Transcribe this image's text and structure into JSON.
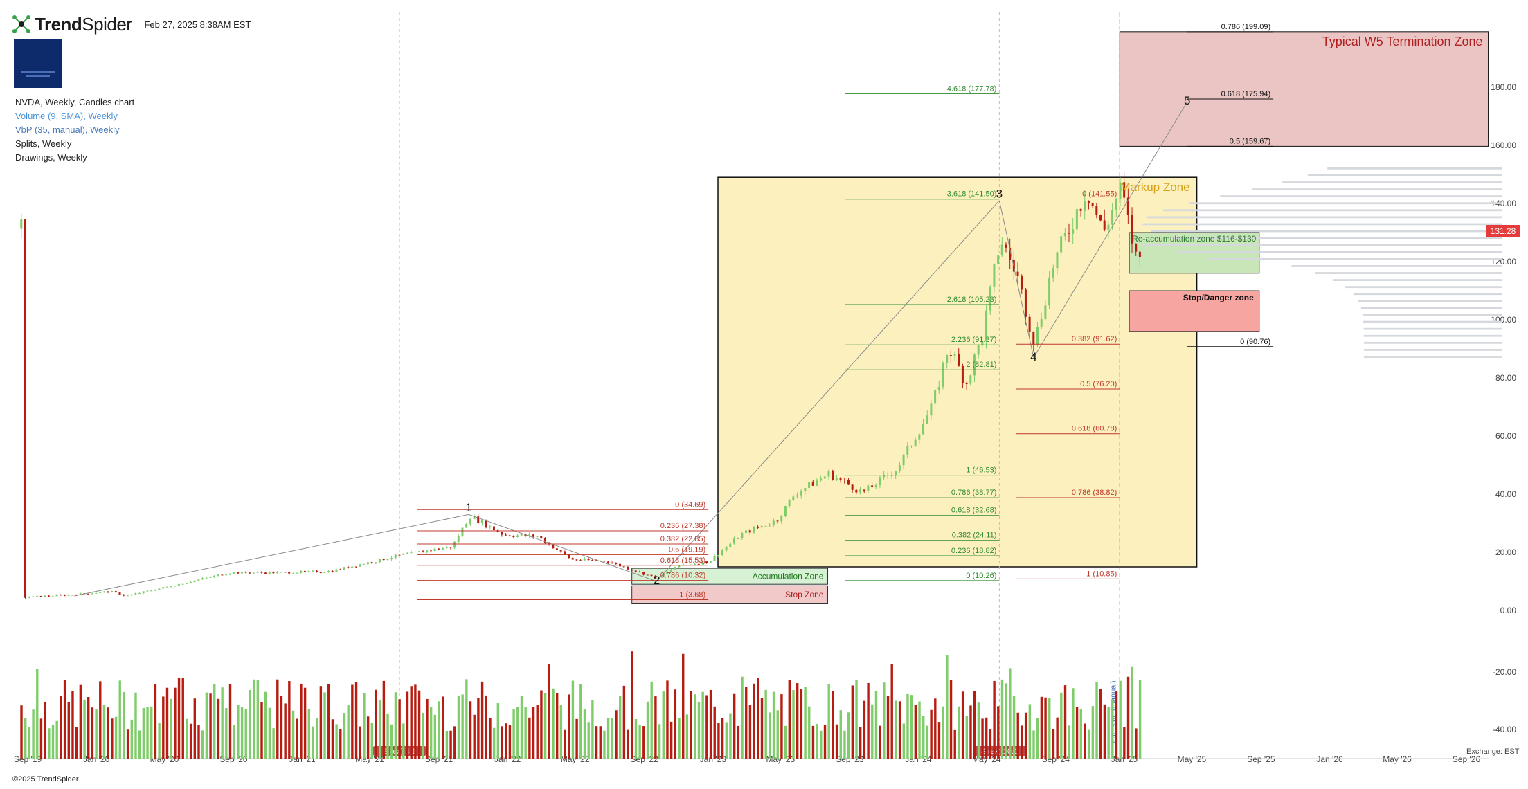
{
  "header": {
    "brand_bold": "Trend",
    "brand_light": "Spider",
    "timestamp": "Feb 27, 2025 8:38AM EST"
  },
  "legend": {
    "title": "NVDA, Weekly, Candles chart",
    "items": [
      {
        "label": "Volume (9, SMA), Weekly",
        "color": "#4a90d9"
      },
      {
        "label": "VbP (35, manual), Weekly",
        "color": "#4a7ab8"
      },
      {
        "label": "Splits, Weekly",
        "color": "#333333"
      },
      {
        "label": "Drawings, Weekly",
        "color": "#333333"
      }
    ]
  },
  "footer": {
    "copyright": "©2025 TrendSpider",
    "exchange": "Exchange: EST"
  },
  "current_price": "131.28",
  "colors": {
    "up": "#7fcd6a",
    "down": "#b71c10",
    "fib_green": "#2e8b2e",
    "fib_red": "#c0392b",
    "markup_zone": "#fdf0bf",
    "w5_zone": "#ebc4c4",
    "accent_price": "#e53b3b"
  },
  "chart_data": {
    "type": "candlestick",
    "ticker": "NVDA",
    "timeframe": "Weekly",
    "x_tick_labels": [
      "Sep '19",
      "Jan '20",
      "May '20",
      "Sep '20",
      "Jan '21",
      "May '21",
      "Sep '21",
      "Jan '22",
      "May '22",
      "Sep '22",
      "Jan '23",
      "May '23",
      "Sep '23",
      "Jan '24",
      "May '24",
      "Sep '24",
      "Jan '25",
      "May '25",
      "Sep '25",
      "Jan '26",
      "May '26",
      "Sep '26"
    ],
    "y_ticks": [
      0,
      20,
      40,
      60,
      80,
      100,
      120,
      140,
      160,
      180
    ],
    "y_tick_labels": [
      "0.00",
      "20.00",
      "40.00",
      "60.00",
      "80.00",
      "100.00",
      "120.00",
      "140.00",
      "160.00",
      "180.00"
    ],
    "volume_ticks": [
      "-20.00",
      "-40.00"
    ],
    "price_points": [
      [
        "2019-09",
        4.5
      ],
      [
        "2019-12",
        5.5
      ],
      [
        "2020-02",
        6.5
      ],
      [
        "2020-03",
        5.0
      ],
      [
        "2020-06",
        9.0
      ],
      [
        "2020-09",
        13.0
      ],
      [
        "2020-12",
        13.0
      ],
      [
        "2021-03",
        13.5
      ],
      [
        "2021-04",
        15.0
      ],
      [
        "2021-07",
        19.0
      ],
      [
        "2021-10",
        22.0
      ],
      [
        "2021-11",
        32.5
      ],
      [
        "2022-01",
        26.0
      ],
      [
        "2022-03",
        25.5
      ],
      [
        "2022-05",
        17.5
      ],
      [
        "2022-07",
        17.0
      ],
      [
        "2022-10",
        11.0
      ],
      [
        "2022-11",
        15.0
      ],
      [
        "2023-01",
        17.0
      ],
      [
        "2023-03",
        26.5
      ],
      [
        "2023-05",
        31.0
      ],
      [
        "2023-06",
        40.0
      ],
      [
        "2023-08",
        47.0
      ],
      [
        "2023-10",
        40.5
      ],
      [
        "2023-12",
        49.0
      ],
      [
        "2024-02",
        70.0
      ],
      [
        "2024-03",
        91.0
      ],
      [
        "2024-04",
        78.0
      ],
      [
        "2024-05",
        95.0
      ],
      [
        "2024-06",
        128.0
      ],
      [
        "2024-07",
        115.0
      ],
      [
        "2024-08",
        92.0
      ],
      [
        "2024-09",
        118.0
      ],
      [
        "2024-11",
        145.0
      ],
      [
        "2024-12",
        130.0
      ],
      [
        "2025-01",
        145.0
      ],
      [
        "2025-02",
        118.0
      ],
      [
        "2025-02-27",
        131.28
      ]
    ],
    "wave_labels": [
      {
        "label": "1",
        "date": "2021-11",
        "price": 34
      },
      {
        "label": "2",
        "date": "2022-10",
        "price": 9
      },
      {
        "label": "3",
        "date": "2024-06",
        "price": 142
      },
      {
        "label": "4",
        "date": "2024-08",
        "price": 86
      },
      {
        "label": "5",
        "date": "2025-05",
        "price": 174
      }
    ],
    "wave_lines": [
      {
        "from": [
          "2019-12",
          5
        ],
        "to": [
          "2021-11",
          33
        ]
      },
      {
        "from": [
          "2021-11",
          33
        ],
        "to": [
          "2022-10",
          10
        ]
      },
      {
        "from": [
          "2022-10",
          10
        ],
        "to": [
          "2024-06",
          141
        ]
      },
      {
        "from": [
          "2024-06",
          141
        ],
        "to": [
          "2024-08",
          87
        ]
      },
      {
        "from": [
          "2024-08",
          87
        ],
        "to": [
          "2025-05",
          175
        ]
      }
    ],
    "zones": [
      {
        "label": "Typical W5 Termination Zone",
        "x_start": "2025-01-15",
        "x_end": "2026-11-01",
        "y_low": 159.67,
        "y_high": 199.09,
        "fill": "#ebc4c4",
        "text_color": "#b02020"
      },
      {
        "label": "Markup Zone",
        "x_start": "2023-02-01",
        "x_end": "2025-06-01",
        "y_low": 15,
        "y_high": 149,
        "fill": "#fdf0bf",
        "text_color": "#d4a017"
      },
      {
        "label": "Accumulation Zone",
        "x_start": "2022-09-01",
        "x_end": "2023-08-15",
        "y_low": 9,
        "y_high": 14.5,
        "fill": "#d6f1d4",
        "text_color": "#1e7a1e"
      },
      {
        "label": "Stop Zone",
        "x_start": "2022-09-01",
        "x_end": "2023-08-15",
        "y_low": 2.5,
        "y_high": 8.5,
        "fill": "#f1c9c9",
        "text_color": "#b02020"
      },
      {
        "label": "Re-accumulation zone $116-$130",
        "x_start": "2025-02-01",
        "x_end": "2025-09-20",
        "y_low": 116,
        "y_high": 130,
        "fill": "#c8e6b8",
        "text_color": "#2e7a2e"
      },
      {
        "label": "Stop/Danger zone",
        "x_start": "2025-02-01",
        "x_end": "2025-09-20",
        "y_low": 96,
        "y_high": 110,
        "fill": "#f7a5a0",
        "text_color": "#111111"
      }
    ],
    "fib_levels": [
      {
        "label": "0 (34.69)",
        "price": 34.69,
        "x_start": "2021-08",
        "x_end": "2023-01",
        "color": "#c0392b"
      },
      {
        "label": "0.236 (27.38)",
        "price": 27.38,
        "x_start": "2021-08",
        "x_end": "2023-01",
        "color": "#c0392b"
      },
      {
        "label": "0.382 (22.85)",
        "price": 22.85,
        "x_start": "2021-08",
        "x_end": "2023-01",
        "color": "#c0392b"
      },
      {
        "label": "0.5 (19.19)",
        "price": 19.19,
        "x_start": "2021-08",
        "x_end": "2023-01",
        "color": "#c0392b"
      },
      {
        "label": "0.618 (15.53)",
        "price": 15.53,
        "x_start": "2021-08",
        "x_end": "2023-01",
        "color": "#c0392b"
      },
      {
        "label": "0.786 (10.32)",
        "price": 10.32,
        "x_start": "2021-08",
        "x_end": "2023-01",
        "color": "#c0392b"
      },
      {
        "label": "1 (3.68)",
        "price": 3.68,
        "x_start": "2021-08",
        "x_end": "2023-01",
        "color": "#c0392b"
      },
      {
        "label": "4.618 (177.78)",
        "price": 177.78,
        "x_start": "2023-09",
        "x_end": "2024-06",
        "color": "#2e8b2e"
      },
      {
        "label": "3.618 (141.50)",
        "price": 141.5,
        "x_start": "2023-09",
        "x_end": "2024-06",
        "color": "#2e8b2e"
      },
      {
        "label": "2.618 (105.23)",
        "price": 105.23,
        "x_start": "2023-09",
        "x_end": "2024-06",
        "color": "#2e8b2e"
      },
      {
        "label": "2.236 (91.37)",
        "price": 91.37,
        "x_start": "2023-09",
        "x_end": "2024-06",
        "color": "#2e8b2e"
      },
      {
        "label": "2 (82.81)",
        "price": 82.81,
        "x_start": "2023-09",
        "x_end": "2024-06",
        "color": "#2e8b2e"
      },
      {
        "label": "1 (46.53)",
        "price": 46.53,
        "x_start": "2023-09",
        "x_end": "2024-06",
        "color": "#2e8b2e"
      },
      {
        "label": "0.786 (38.77)",
        "price": 38.77,
        "x_start": "2023-09",
        "x_end": "2024-06",
        "color": "#2e8b2e"
      },
      {
        "label": "0.618 (32.68)",
        "price": 32.68,
        "x_start": "2023-09",
        "x_end": "2024-06",
        "color": "#2e8b2e"
      },
      {
        "label": "0.382 (24.11)",
        "price": 24.11,
        "x_start": "2023-09",
        "x_end": "2024-06",
        "color": "#2e8b2e"
      },
      {
        "label": "0.236 (18.82)",
        "price": 18.82,
        "x_start": "2023-09",
        "x_end": "2024-06",
        "color": "#2e8b2e"
      },
      {
        "label": "0 (10.26)",
        "price": 10.26,
        "x_start": "2023-09",
        "x_end": "2024-06",
        "color": "#2e8b2e"
      },
      {
        "label": "0 (141.55)",
        "price": 141.55,
        "x_start": "2024-07",
        "x_end": "2025-01",
        "color": "#c0392b"
      },
      {
        "label": "0.382 (91.62)",
        "price": 91.62,
        "x_start": "2024-07",
        "x_end": "2025-01",
        "color": "#c0392b"
      },
      {
        "label": "0.5 (76.20)",
        "price": 76.2,
        "x_start": "2024-07",
        "x_end": "2025-01",
        "color": "#c0392b"
      },
      {
        "label": "0.618 (60.78)",
        "price": 60.78,
        "x_start": "2024-07",
        "x_end": "2025-01",
        "color": "#c0392b"
      },
      {
        "label": "0.786 (38.82)",
        "price": 38.82,
        "x_start": "2024-07",
        "x_end": "2025-01",
        "color": "#c0392b"
      },
      {
        "label": "1 (10.85)",
        "price": 10.85,
        "x_start": "2024-07",
        "x_end": "2025-01",
        "color": "#c0392b"
      },
      {
        "label": "0.786 (199.09)",
        "price": 199.09,
        "x_start": "2025-05",
        "x_end": "2025-10",
        "color": "#111111"
      },
      {
        "label": "0.618 (175.94)",
        "price": 175.94,
        "x_start": "2025-05",
        "x_end": "2025-10",
        "color": "#111111"
      },
      {
        "label": "0.5 (159.67)",
        "price": 159.67,
        "x_start": "2025-05",
        "x_end": "2025-10",
        "color": "#111111"
      },
      {
        "label": "0 (90.76)",
        "price": 90.76,
        "x_start": "2025-05",
        "x_end": "2025-10",
        "color": "#111111"
      }
    ],
    "vertical_markers": [
      {
        "date": "2021-07",
        "label": "S (ex) 4:1",
        "style": "dashed-pink"
      },
      {
        "date": "2024-06",
        "label": "S (ex) 10:1",
        "style": "dashed-pink"
      },
      {
        "date": "2025-01",
        "label": "VbP start (manual)",
        "style": "dashed-blue"
      }
    ]
  }
}
